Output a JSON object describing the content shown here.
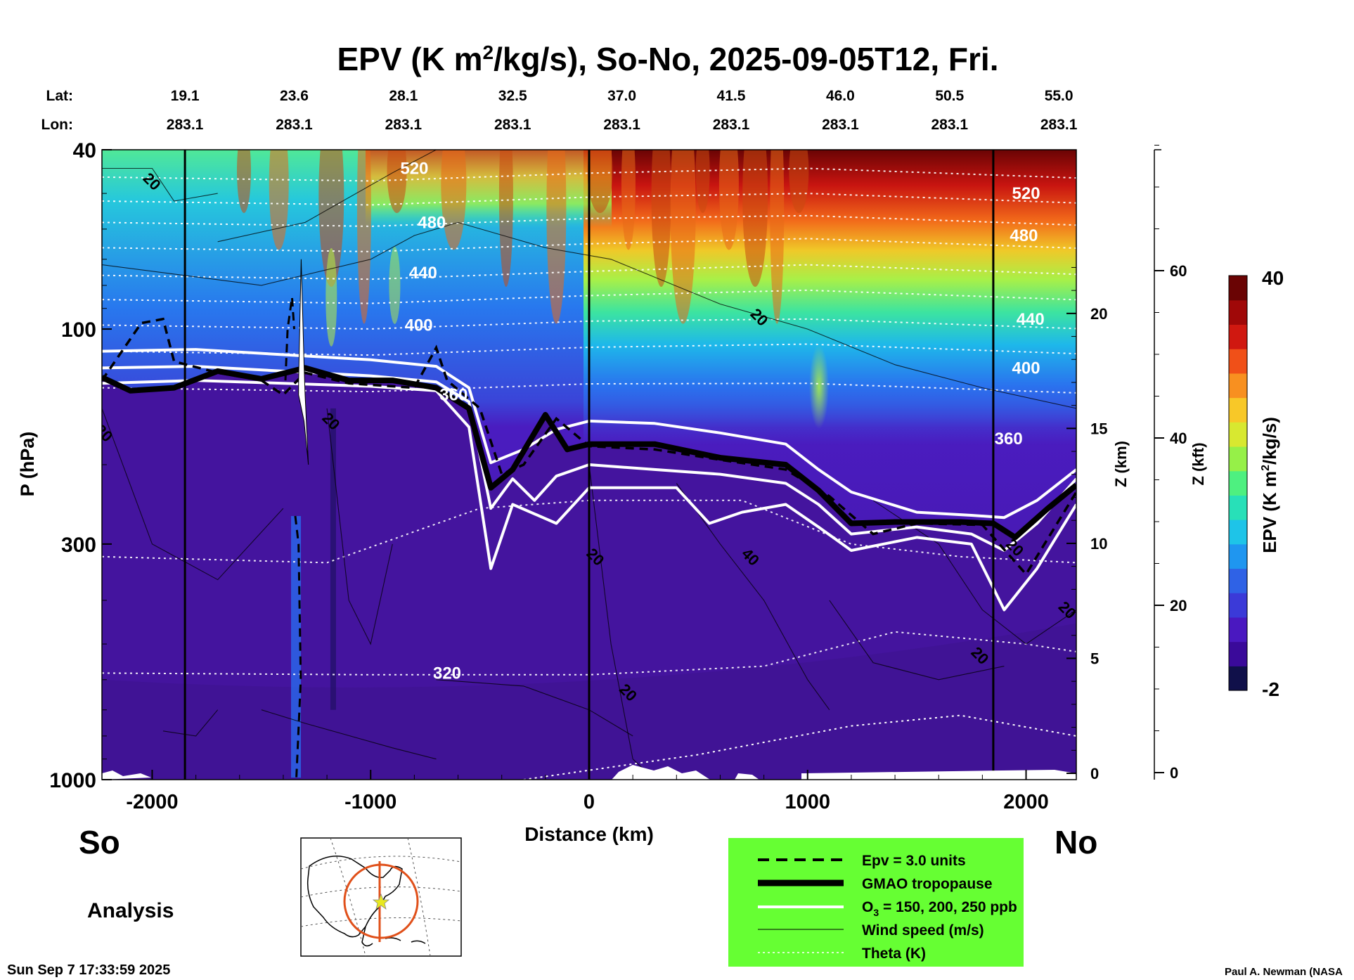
{
  "chart_data": {
    "type": "heatmap",
    "title_parts": {
      "prefix": "EPV (K m",
      "sup": "2",
      "suffix": "/kg/s), So-No, 2025-09-05T12, Fri."
    },
    "header_rows": {
      "lat_label": "Lat:",
      "lon_label": "Lon:",
      "lat": [
        "19.1",
        "23.6",
        "28.1",
        "32.5",
        "37.0",
        "41.5",
        "46.0",
        "50.5",
        "55.0"
      ],
      "lon": [
        "283.1",
        "283.1",
        "283.1",
        "283.1",
        "283.1",
        "283.1",
        "283.1",
        "283.1",
        "283.1"
      ],
      "distance_km": [
        -1850,
        -1350,
        -850,
        -350,
        150,
        650,
        1150,
        1650,
        2150
      ]
    },
    "x_axis": {
      "label": "Distance (km)",
      "range": [
        -2230,
        2230
      ],
      "ticks": [
        -2000,
        -1000,
        0,
        1000,
        2000
      ]
    },
    "y_axis": {
      "label": "P (hPa)",
      "scale": "log",
      "range": [
        1000,
        40
      ],
      "ticks": [
        40,
        100,
        300,
        1000
      ]
    },
    "z_km_axis": {
      "label": "Z (km)",
      "ticks": [
        0,
        5,
        10,
        15,
        20
      ]
    },
    "z_kft_axis": {
      "label": "Z (kft)",
      "ticks": [
        0,
        20,
        40,
        60
      ]
    },
    "colorbar": {
      "label_parts": {
        "prefix": "EPV (K m",
        "sup": "2",
        "suffix": "/kg/s)"
      },
      "min": -2,
      "max": 40,
      "min_label": "-2",
      "max_label": "40",
      "colors": [
        "#10104a",
        "#3a0a9a",
        "#4a18c0",
        "#3b3ad8",
        "#2f62e6",
        "#1f96f0",
        "#1ec4e8",
        "#28e0b8",
        "#4ef080",
        "#96f048",
        "#d8e830",
        "#f8c828",
        "#f89020",
        "#f05018",
        "#d01810",
        "#a00808",
        "#6a0404"
      ]
    },
    "theta_labels": [
      {
        "text": "520",
        "x_km": -800,
        "p": 44
      },
      {
        "text": "480",
        "x_km": -720,
        "p": 58
      },
      {
        "text": "440",
        "x_km": -760,
        "p": 75
      },
      {
        "text": "400",
        "x_km": -780,
        "p": 98
      },
      {
        "text": "360",
        "x_km": -620,
        "p": 140
      },
      {
        "text": "320",
        "x_km": -650,
        "p": 580
      },
      {
        "text": "520",
        "x_km": 2000,
        "p": 50
      },
      {
        "text": "480",
        "x_km": 1990,
        "p": 62
      },
      {
        "text": "440",
        "x_km": 2020,
        "p": 95
      },
      {
        "text": "400",
        "x_km": 2000,
        "p": 122
      },
      {
        "text": "360",
        "x_km": 1920,
        "p": 175
      }
    ],
    "wind_labels": [
      {
        "text": "20",
        "x_km": -2000,
        "p": 47
      },
      {
        "text": "20",
        "x_km": 780,
        "p": 94
      },
      {
        "text": "20",
        "x_km": -2220,
        "p": 170
      },
      {
        "text": "20",
        "x_km": -1180,
        "p": 160
      },
      {
        "text": "20",
        "x_km": 30,
        "p": 320
      },
      {
        "text": "40",
        "x_km": 740,
        "p": 320
      },
      {
        "text": "20",
        "x_km": 1950,
        "p": 305
      },
      {
        "text": "20",
        "x_km": 2190,
        "p": 420
      },
      {
        "text": "20",
        "x_km": 1790,
        "p": 530
      },
      {
        "text": "20",
        "x_km": 180,
        "p": 640
      }
    ],
    "tropopause_p": [
      [
        -2230,
        128
      ],
      [
        -2100,
        137
      ],
      [
        -1900,
        135
      ],
      [
        -1700,
        124
      ],
      [
        -1500,
        129
      ],
      [
        -1300,
        122
      ],
      [
        -1100,
        130
      ],
      [
        -900,
        130
      ],
      [
        -700,
        135
      ],
      [
        -550,
        150
      ],
      [
        -450,
        225
      ],
      [
        -350,
        205
      ],
      [
        -200,
        155
      ],
      [
        -100,
        185
      ],
      [
        0,
        180
      ],
      [
        300,
        180
      ],
      [
        600,
        193
      ],
      [
        900,
        200
      ],
      [
        1050,
        228
      ],
      [
        1200,
        270
      ],
      [
        1400,
        268
      ],
      [
        1700,
        268
      ],
      [
        1850,
        270
      ],
      [
        1950,
        290
      ],
      [
        2100,
        250
      ],
      [
        2230,
        222
      ]
    ],
    "o3_150_p": [
      [
        -2230,
        112
      ],
      [
        -1800,
        111
      ],
      [
        -1400,
        114
      ],
      [
        -1000,
        117
      ],
      [
        -700,
        121
      ],
      [
        -550,
        135
      ],
      [
        -450,
        198
      ],
      [
        -300,
        185
      ],
      [
        -150,
        167
      ],
      [
        0,
        160
      ],
      [
        300,
        162
      ],
      [
        600,
        170
      ],
      [
        900,
        180
      ],
      [
        1050,
        205
      ],
      [
        1200,
        230
      ],
      [
        1500,
        255
      ],
      [
        1750,
        259
      ],
      [
        1900,
        262
      ],
      [
        2050,
        240
      ],
      [
        2230,
        205
      ]
    ],
    "o3_200_p": [
      [
        -2230,
        122
      ],
      [
        -1800,
        121
      ],
      [
        -1400,
        124
      ],
      [
        -1000,
        127
      ],
      [
        -700,
        131
      ],
      [
        -550,
        145
      ],
      [
        -450,
        250
      ],
      [
        -350,
        215
      ],
      [
        -250,
        240
      ],
      [
        -150,
        212
      ],
      [
        0,
        200
      ],
      [
        300,
        205
      ],
      [
        600,
        210
      ],
      [
        900,
        220
      ],
      [
        1050,
        245
      ],
      [
        1200,
        285
      ],
      [
        1500,
        275
      ],
      [
        1750,
        285
      ],
      [
        1900,
        310
      ],
      [
        2050,
        270
      ],
      [
        2230,
        215
      ]
    ],
    "o3_250_p": [
      [
        -2230,
        132
      ],
      [
        -1800,
        130
      ],
      [
        -1400,
        132
      ],
      [
        -1000,
        134
      ],
      [
        -700,
        137
      ],
      [
        -550,
        165
      ],
      [
        -450,
        340
      ],
      [
        -350,
        245
      ],
      [
        -150,
        270
      ],
      [
        0,
        225
      ],
      [
        400,
        225
      ],
      [
        550,
        270
      ],
      [
        700,
        255
      ],
      [
        900,
        245
      ],
      [
        1050,
        275
      ],
      [
        1200,
        310
      ],
      [
        1500,
        290
      ],
      [
        1750,
        300
      ],
      [
        1900,
        420
      ],
      [
        2050,
        340
      ],
      [
        2230,
        245
      ]
    ],
    "epv3_dashed_p": [
      [
        -2230,
        130
      ],
      [
        -2050,
        97
      ],
      [
        -1950,
        95
      ],
      [
        -1900,
        118
      ],
      [
        -1700,
        125
      ],
      [
        -1500,
        130
      ],
      [
        -1400,
        140
      ],
      [
        -1300,
        125
      ],
      [
        -1100,
        132
      ],
      [
        -800,
        135
      ],
      [
        -700,
        110
      ],
      [
        -650,
        130
      ],
      [
        -500,
        150
      ],
      [
        -400,
        210
      ],
      [
        -300,
        200
      ],
      [
        -150,
        158
      ],
      [
        0,
        182
      ],
      [
        300,
        185
      ],
      [
        600,
        195
      ],
      [
        900,
        205
      ],
      [
        1100,
        235
      ],
      [
        1300,
        285
      ],
      [
        1500,
        270
      ],
      [
        1800,
        272
      ],
      [
        2000,
        350
      ],
      [
        2230,
        230
      ]
    ],
    "epv_column_x_km": [
      -1345,
      -1165
    ],
    "white_spike_x_km": -1310,
    "theta_surface_plot": "dotted white isentropes 320-520 K",
    "vertical_lines_km": [
      -1850,
      0,
      1850
    ]
  },
  "labels": {
    "south": "So",
    "north": "No",
    "analysis": "Analysis",
    "timestamp": "Sun Sep  7 17:33:59 2025",
    "credit": "Paul A. Newman (NASA"
  },
  "legend": {
    "background": "#66ff33",
    "items": [
      {
        "style": "dashed",
        "label": "Epv = 3.0 units"
      },
      {
        "style": "thick-black",
        "label": "GMAO tropopause"
      },
      {
        "style": "white",
        "label_prefix": "O",
        "label_sub": "3",
        "label_suffix": " = 150, 200, 250 ppb"
      },
      {
        "style": "thin-black",
        "label": "Wind speed (m/s)"
      },
      {
        "style": "dotted-white",
        "label": "Theta (K)"
      }
    ]
  },
  "inset_map": {
    "line_color": "#e0501a",
    "marker": "star"
  }
}
